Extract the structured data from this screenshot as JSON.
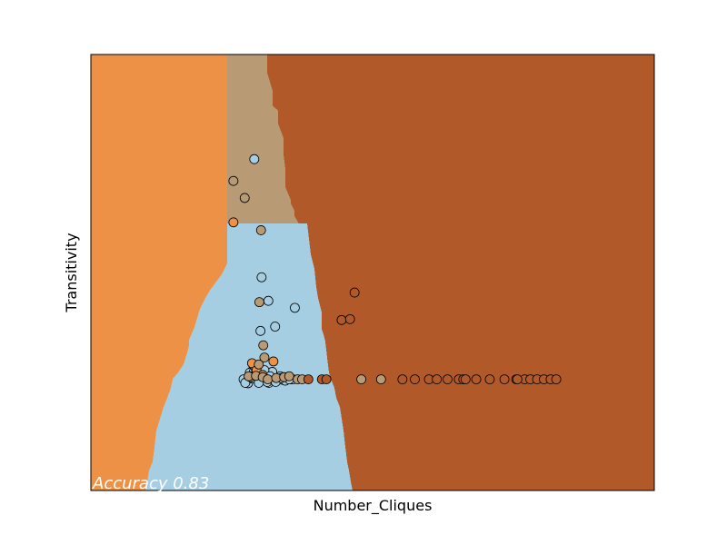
{
  "chart_data": {
    "type": "scatter",
    "title": "",
    "xlabel": "Number_Cliques",
    "ylabel": "Transitivity",
    "annotation": "Accuracy 0.83",
    "xlim": [
      0,
      1
    ],
    "ylim": [
      0,
      1
    ],
    "ticks_visible": false,
    "grid": false,
    "legend": "none",
    "classes": [
      {
        "id": "c0",
        "color": "#a6cee3"
      },
      {
        "id": "c1",
        "color": "#ec9145"
      },
      {
        "id": "c2",
        "color": "#b89a74"
      },
      {
        "id": "c3",
        "color": "#b15928"
      }
    ],
    "regions": {
      "profile_y": [
        1.0,
        0.9958,
        0.9583,
        0.9167,
        0.8833,
        0.8708,
        0.8417,
        0.8083,
        0.7708,
        0.7375,
        0.6958,
        0.6667,
        0.6583,
        0.6417,
        0.6292,
        0.6083,
        0.5917,
        0.5583,
        0.5417,
        0.5208,
        0.4958,
        0.4625,
        0.4417,
        0.4167,
        0.375,
        0.3458,
        0.3333,
        0.3167,
        0.2896,
        0.2708,
        0.2562,
        0.2354,
        0.2125,
        0.1917,
        0.1646,
        0.1375,
        0.1,
        0.0667,
        0.0458,
        0.0208,
        0.0
      ],
      "c1_right_x": [
        0.2419,
        0.2419,
        0.2419,
        0.2419,
        0.2419,
        0.2419,
        0.2419,
        0.2419,
        0.2419,
        0.2419,
        0.2419,
        0.2419,
        0.2419,
        0.2419,
        0.2419,
        0.2419,
        0.2419,
        0.2419,
        0.2419,
        0.2419,
        0.2323,
        0.2129,
        0.2032,
        0.1935,
        0.1839,
        0.1742,
        0.1742,
        0.171,
        0.1645,
        0.1548,
        0.1452,
        0.1419,
        0.1355,
        0.129,
        0.1226,
        0.1161,
        0.1129,
        0.1097,
        0.1032,
        0.1,
        0.0968
      ],
      "c2_right_x": [
        0.3129,
        0.3129,
        0.3129,
        0.3226,
        0.3226,
        0.3323,
        0.3323,
        0.3419,
        0.3419,
        0.3452,
        0.3452,
        0.3548,
        0.3548,
        0.3613,
        0.3613,
        0.371,
        0.3742,
        0.3742,
        0.3806,
        0.3839,
        0.3903,
        0.3968,
        0.4,
        0.4032,
        0.4097,
        0.4097,
        0.4129,
        0.4161,
        0.4194,
        0.4226,
        0.4258,
        0.4323,
        0.4355,
        0.4419,
        0.4452,
        0.4484,
        0.4516,
        0.4548,
        0.4581,
        0.4613,
        0.4645
      ],
      "c0_top_y": [
        0.6125,
        0.6125,
        0.6125,
        0.6125,
        0.6125,
        0.6125,
        0.6125,
        0.6125,
        0.6125,
        0.6125,
        0.6125,
        0.6125,
        0.6125,
        0.6125,
        0.6125,
        0.6125,
        0.6125,
        0.6125,
        0.6125,
        0.6125,
        0.5417,
        0.5083,
        0.4667,
        0.4417,
        0.4083,
        0.3708,
        0.3583,
        0.3417,
        0.3042,
        0.2708,
        0.2562,
        0.2354,
        0.2125,
        0.1917,
        0.1646,
        0.1375,
        0.1,
        0.0667,
        0.0458,
        0.0208,
        0.0
      ],
      "c0_top_x": [
        0.221,
        0.2323,
        0.2419,
        0.2516,
        0.2581,
        0.2677,
        0.279,
        0.2919,
        0.3,
        0.3097,
        0.3161
      ]
    },
    "series": [
      {
        "class": "c0",
        "points": [
          [
            0.29,
            0.76
          ],
          [
            0.303,
            0.489
          ],
          [
            0.362,
            0.419
          ],
          [
            0.327,
            0.376
          ],
          [
            0.315,
            0.435
          ],
          [
            0.301,
            0.366
          ],
          [
            0.286,
            0.274
          ],
          [
            0.271,
            0.255
          ],
          [
            0.282,
            0.27
          ],
          [
            0.295,
            0.262
          ],
          [
            0.3,
            0.252
          ],
          [
            0.31,
            0.26
          ],
          [
            0.316,
            0.247
          ],
          [
            0.322,
            0.272
          ],
          [
            0.333,
            0.257
          ],
          [
            0.34,
            0.254
          ],
          [
            0.348,
            0.255
          ],
          [
            0.35,
            0.256
          ],
          [
            0.355,
            0.255
          ],
          [
            0.296,
            0.254
          ],
          [
            0.279,
            0.246
          ],
          [
            0.28,
            0.256
          ],
          [
            0.289,
            0.272
          ],
          [
            0.305,
            0.268
          ],
          [
            0.308,
            0.276
          ],
          [
            0.313,
            0.249
          ],
          [
            0.321,
            0.256
          ],
          [
            0.336,
            0.262
          ],
          [
            0.345,
            0.252
          ],
          [
            0.359,
            0.255
          ],
          [
            0.288,
            0.258
          ],
          [
            0.318,
            0.262
          ],
          [
            0.292,
            0.281
          ],
          [
            0.274,
            0.247
          ],
          [
            0.283,
            0.262
          ],
          [
            0.298,
            0.247
          ],
          [
            0.328,
            0.249
          ],
          [
            0.338,
            0.258
          ],
          [
            0.352,
            0.255
          ]
        ]
      },
      {
        "class": "c1",
        "points": [
          [
            0.253,
            0.615
          ],
          [
            0.286,
            0.292
          ],
          [
            0.294,
            0.276
          ],
          [
            0.305,
            0.265
          ],
          [
            0.324,
            0.296
          ],
          [
            0.283,
            0.26
          ]
        ]
      },
      {
        "class": "c2",
        "points": [
          [
            0.253,
            0.71
          ],
          [
            0.273,
            0.671
          ],
          [
            0.302,
            0.597
          ],
          [
            0.299,
            0.432
          ],
          [
            0.306,
            0.333
          ],
          [
            0.308,
            0.305
          ],
          [
            0.298,
            0.289
          ],
          [
            0.28,
            0.262
          ],
          [
            0.293,
            0.263
          ],
          [
            0.305,
            0.26
          ],
          [
            0.314,
            0.255
          ],
          [
            0.329,
            0.258
          ],
          [
            0.343,
            0.26
          ],
          [
            0.352,
            0.262
          ],
          [
            0.367,
            0.255
          ],
          [
            0.375,
            0.255
          ],
          [
            0.48,
            0.255
          ],
          [
            0.515,
            0.255
          ]
        ]
      },
      {
        "class": "c3",
        "points": [
          [
            0.468,
            0.454
          ],
          [
            0.445,
            0.391
          ],
          [
            0.46,
            0.393
          ],
          [
            0.386,
            0.255
          ],
          [
            0.41,
            0.255
          ],
          [
            0.418,
            0.255
          ],
          [
            0.553,
            0.255
          ],
          [
            0.575,
            0.255
          ],
          [
            0.6,
            0.255
          ],
          [
            0.614,
            0.255
          ],
          [
            0.633,
            0.255
          ],
          [
            0.653,
            0.255
          ],
          [
            0.661,
            0.255
          ],
          [
            0.684,
            0.255
          ],
          [
            0.708,
            0.255
          ],
          [
            0.734,
            0.255
          ],
          [
            0.755,
            0.255
          ],
          [
            0.77,
            0.255
          ],
          [
            0.78,
            0.255
          ],
          [
            0.792,
            0.255
          ],
          [
            0.804,
            0.255
          ],
          [
            0.816,
            0.255
          ],
          [
            0.826,
            0.255
          ],
          [
            0.757,
            0.255
          ],
          [
            0.665,
            0.255
          ]
        ]
      }
    ]
  }
}
